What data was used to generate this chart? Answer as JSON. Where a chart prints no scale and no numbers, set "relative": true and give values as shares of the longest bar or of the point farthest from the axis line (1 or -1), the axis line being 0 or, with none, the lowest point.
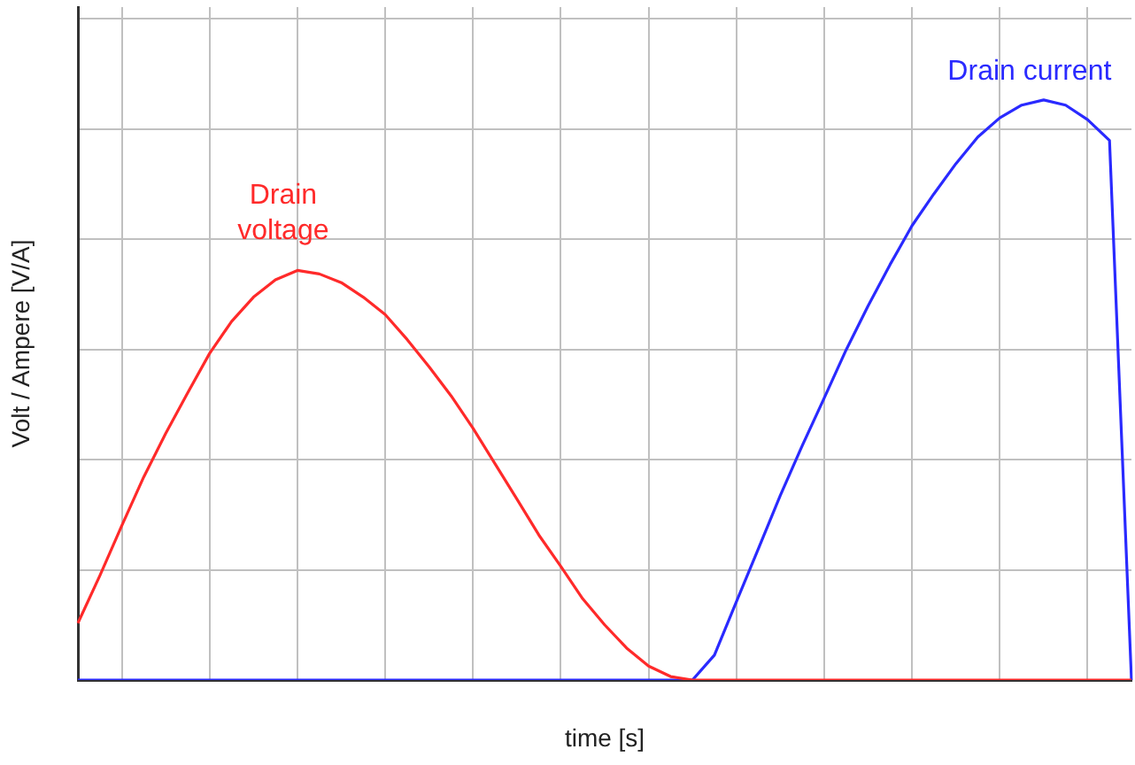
{
  "chart_data": {
    "type": "line",
    "relative": true,
    "xlabel": "time [s]",
    "ylabel": "Volt / Ampere [V/A]",
    "grid": true,
    "categories": [
      null,
      null,
      null,
      null,
      null,
      null,
      null,
      null,
      null,
      null,
      null,
      null,
      null,
      null,
      null,
      null,
      null,
      null,
      null,
      null,
      null,
      null,
      null,
      null,
      null,
      null,
      null,
      null,
      null,
      null,
      null,
      null,
      null,
      null,
      null,
      null,
      null,
      null,
      null,
      null,
      null,
      null,
      null,
      null,
      null,
      null,
      null,
      null,
      null
    ],
    "series": [
      {
        "name": "Drain voltage",
        "color": "#ff2a2a",
        "values": [
          0.098,
          0.18,
          0.266,
          0.35,
          0.425,
          0.495,
          0.563,
          0.618,
          0.66,
          0.69,
          0.706,
          0.7,
          0.685,
          0.66,
          0.63,
          0.587,
          0.54,
          0.49,
          0.434,
          0.373,
          0.312,
          0.25,
          0.196,
          0.14,
          0.095,
          0.055,
          0.024,
          0.006,
          0,
          0,
          0,
          0,
          0,
          0,
          0,
          0,
          0,
          0,
          0,
          0,
          0,
          0,
          0,
          0,
          0,
          0,
          0,
          0,
          0
        ]
      },
      {
        "name": "Drain current",
        "color": "#2a2aff",
        "values": [
          0,
          0,
          0,
          0,
          0,
          0,
          0,
          0,
          0,
          0,
          0,
          0,
          0,
          0,
          0,
          0,
          0,
          0,
          0,
          0,
          0,
          0,
          0,
          0,
          0,
          0,
          0,
          0,
          0,
          0.043,
          0.135,
          0.226,
          0.318,
          0.404,
          0.486,
          0.569,
          0.645,
          0.716,
          0.783,
          0.838,
          0.89,
          0.936,
          0.969,
          0.991,
          1,
          0.991,
          0.966,
          0.93,
          0
        ]
      }
    ]
  }
}
